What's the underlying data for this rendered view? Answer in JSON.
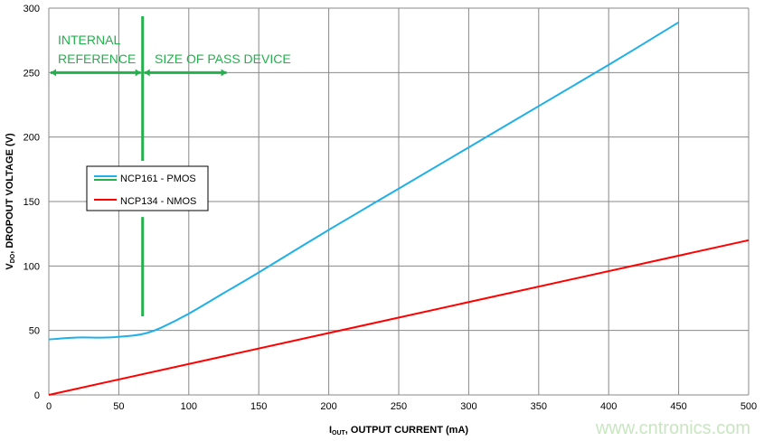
{
  "chart_data": {
    "type": "line",
    "xlabel": {
      "main": "I",
      "sub": "OUT",
      "rest": ", OUTPUT CURRENT (mA)"
    },
    "ylabel": {
      "main": "V",
      "sub": "DO",
      "rest": ", DROPOUT VOLTAGE (V)"
    },
    "xlim": [
      0,
      500
    ],
    "ylim": [
      0,
      300
    ],
    "xticks": [
      0,
      50,
      100,
      150,
      200,
      250,
      300,
      350,
      400,
      450,
      500
    ],
    "yticks": [
      0,
      50,
      100,
      150,
      200,
      250,
      300
    ],
    "grid": true,
    "legend_placement": "center-left",
    "series": [
      {
        "name": "NCP161 - PMOS",
        "color": "#1fb0e8",
        "x": [
          0,
          20,
          40,
          60,
          70,
          80,
          100,
          125,
          150,
          200,
          250,
          300,
          350,
          400,
          450
        ],
        "y": [
          43,
          44.5,
          44.5,
          46,
          48,
          52,
          63,
          79,
          95,
          128,
          160,
          192,
          224,
          256,
          289
        ]
      },
      {
        "name": "NCP134 - NMOS",
        "color": "#ff0000",
        "x": [
          0,
          500
        ],
        "y": [
          0,
          120
        ]
      }
    ],
    "annotations": {
      "color": "#22b14c",
      "divider_x": 67,
      "divider_segments": [
        [
          181.5,
          293.7
        ],
        [
          61,
          138
        ]
      ],
      "arrow_y": 250,
      "left_label": [
        "INTERNAL",
        "REFERENCE"
      ],
      "right_label": "SIZE OF PASS DEVICE",
      "right_arrow_end": 127
    },
    "legend_extra_color": "#22b14c"
  },
  "watermark": "www.cntronics.com"
}
